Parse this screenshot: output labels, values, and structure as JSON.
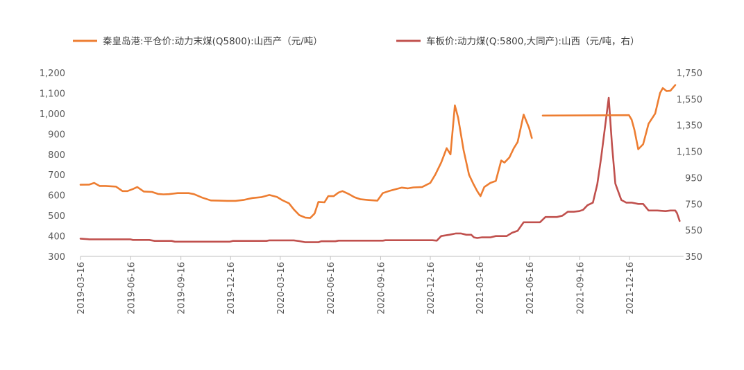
{
  "chart_data": {
    "type": "line",
    "legend_position": "top",
    "grid": false,
    "series": [
      {
        "name": "秦皇岛港:平仓价:动力末煤(Q5800):山西产（元/吨）",
        "axis": "left",
        "color": "#ED7D31",
        "points": [
          [
            "2019-03-16",
            651
          ],
          [
            "2019-04-01",
            652
          ],
          [
            "2019-04-10",
            660
          ],
          [
            "2019-04-20",
            645
          ],
          [
            "2019-05-01",
            645
          ],
          [
            "2019-05-20",
            642
          ],
          [
            "2019-06-01",
            620
          ],
          [
            "2019-06-10",
            620
          ],
          [
            "2019-06-20",
            630
          ],
          [
            "2019-06-28",
            640
          ],
          [
            "2019-07-10",
            618
          ],
          [
            "2019-07-25",
            616
          ],
          [
            "2019-08-05",
            606
          ],
          [
            "2019-08-15",
            604
          ],
          [
            "2019-08-25",
            605
          ],
          [
            "2019-09-10",
            610
          ],
          [
            "2019-09-30",
            610
          ],
          [
            "2019-10-10",
            605
          ],
          [
            "2019-10-25",
            588
          ],
          [
            "2019-11-10",
            574
          ],
          [
            "2019-11-25",
            573
          ],
          [
            "2019-12-10",
            572
          ],
          [
            "2019-12-25",
            572
          ],
          [
            "2020-01-10",
            577
          ],
          [
            "2020-01-25",
            586
          ],
          [
            "2020-02-10",
            590
          ],
          [
            "2020-02-25",
            601
          ],
          [
            "2020-03-10",
            591
          ],
          [
            "2020-03-20",
            575
          ],
          [
            "2020-04-01",
            560
          ],
          [
            "2020-04-10",
            530
          ],
          [
            "2020-04-20",
            502
          ],
          [
            "2020-05-01",
            490
          ],
          [
            "2020-05-10",
            488
          ],
          [
            "2020-05-18",
            510
          ],
          [
            "2020-05-25",
            567
          ],
          [
            "2020-06-05",
            565
          ],
          [
            "2020-06-12",
            595
          ],
          [
            "2020-06-22",
            595
          ],
          [
            "2020-07-01",
            613
          ],
          [
            "2020-07-08",
            620
          ],
          [
            "2020-07-20",
            605
          ],
          [
            "2020-07-30",
            590
          ],
          [
            "2020-08-10",
            580
          ],
          [
            "2020-08-25",
            576
          ],
          [
            "2020-09-10",
            573
          ],
          [
            "2020-09-20",
            610
          ],
          [
            "2020-10-01",
            620
          ],
          [
            "2020-10-15",
            630
          ],
          [
            "2020-10-25",
            637
          ],
          [
            "2020-11-05",
            633
          ],
          [
            "2020-11-15",
            638
          ],
          [
            "2020-12-01",
            640
          ],
          [
            "2020-12-16",
            660
          ],
          [
            "2020-12-25",
            700
          ],
          [
            "2021-01-05",
            760
          ],
          [
            "2021-01-15",
            830
          ],
          [
            "2021-01-22",
            800
          ],
          [
            "2021-01-30",
            1040
          ],
          [
            "2021-02-05",
            980
          ],
          [
            "2021-02-15",
            820
          ],
          [
            "2021-02-25",
            700
          ],
          [
            "2021-03-05",
            655
          ],
          [
            "2021-03-12",
            620
          ],
          [
            "2021-03-18",
            595
          ],
          [
            "2021-03-25",
            640
          ],
          [
            "2021-04-05",
            660
          ],
          [
            "2021-04-15",
            670
          ],
          [
            "2021-04-25",
            770
          ],
          [
            "2021-05-01",
            760
          ],
          [
            "2021-05-10",
            785
          ],
          [
            "2021-05-18",
            830
          ],
          [
            "2021-05-25",
            860
          ],
          [
            "2021-06-05",
            995
          ],
          [
            "2021-06-15",
            930
          ],
          [
            "2021-06-20",
            880
          ]
        ]
      },
      {
        "name": "车板价:动力煤(Q:5800,大同产):山西（元/吨，右）",
        "axis": "right",
        "color": "#C0504D",
        "points": [
          [
            "2019-03-16",
            485
          ],
          [
            "2019-04-01",
            480
          ],
          [
            "2019-06-15",
            480
          ],
          [
            "2019-06-20",
            475
          ],
          [
            "2019-07-20",
            475
          ],
          [
            "2019-07-30",
            468
          ],
          [
            "2019-08-30",
            468
          ],
          [
            "2019-09-05",
            462
          ],
          [
            "2019-12-15",
            462
          ],
          [
            "2019-12-20",
            468
          ],
          [
            "2020-02-20",
            468
          ],
          [
            "2020-02-25",
            472
          ],
          [
            "2020-04-10",
            472
          ],
          [
            "2020-04-20",
            466
          ],
          [
            "2020-05-01",
            458
          ],
          [
            "2020-05-25",
            458
          ],
          [
            "2020-05-30",
            465
          ],
          [
            "2020-06-25",
            465
          ],
          [
            "2020-07-01",
            470
          ],
          [
            "2020-09-20",
            470
          ],
          [
            "2020-09-25",
            473
          ],
          [
            "2020-12-20",
            473
          ],
          [
            "2020-12-28",
            470
          ],
          [
            "2021-01-05",
            505
          ],
          [
            "2021-01-20",
            515
          ],
          [
            "2021-02-01",
            525
          ],
          [
            "2021-02-10",
            525
          ],
          [
            "2021-02-20",
            515
          ],
          [
            "2021-03-01",
            515
          ],
          [
            "2021-03-06",
            495
          ],
          [
            "2021-03-12",
            490
          ],
          [
            "2021-03-20",
            495
          ],
          [
            "2021-04-05",
            495
          ],
          [
            "2021-04-15",
            505
          ],
          [
            "2021-05-05",
            505
          ],
          [
            "2021-05-15",
            530
          ],
          [
            "2021-05-25",
            545
          ],
          [
            "2021-06-05",
            610
          ],
          [
            "2021-06-20",
            610
          ],
          [
            "2021-07-05",
            610
          ],
          [
            "2021-07-15",
            650
          ],
          [
            "2021-08-05",
            650
          ],
          [
            "2021-08-15",
            660
          ],
          [
            "2021-08-25",
            690
          ],
          [
            "2021-09-05",
            690
          ],
          [
            "2021-09-15",
            695
          ],
          [
            "2021-09-22",
            705
          ],
          [
            "2021-09-30",
            740
          ],
          [
            "2021-10-10",
            760
          ],
          [
            "2021-10-18",
            900
          ],
          [
            "2021-10-25",
            1100
          ],
          [
            "2021-11-01",
            1330
          ],
          [
            "2021-11-08",
            1560
          ],
          [
            "2021-11-14",
            1200
          ],
          [
            "2021-11-20",
            905
          ],
          [
            "2021-12-01",
            780
          ],
          [
            "2021-12-10",
            760
          ],
          [
            "2021-12-20",
            760
          ],
          [
            "2022-01-01",
            750
          ],
          [
            "2022-01-10",
            750
          ],
          [
            "2022-01-20",
            700
          ],
          [
            "2022-02-05",
            700
          ],
          [
            "2022-02-20",
            695
          ],
          [
            "2022-03-01",
            700
          ],
          [
            "2022-03-10",
            700
          ],
          [
            "2022-03-13",
            680
          ],
          [
            "2022-03-18",
            620
          ]
        ]
      },
      {
        "name": "秦皇岛港:平仓价:动力末煤(Q5800):山西产（元/吨）",
        "segment_of": 0,
        "axis": "left",
        "color": "#ED7D31",
        "points": [
          [
            "2021-07-10",
            990
          ],
          [
            "2021-12-15",
            992
          ],
          [
            "2021-12-20",
            970
          ],
          [
            "2021-12-25",
            920
          ],
          [
            "2022-01-01",
            825
          ],
          [
            "2022-01-10",
            850
          ],
          [
            "2022-01-20",
            950
          ],
          [
            "2022-02-01",
            1000
          ],
          [
            "2022-02-10",
            1100
          ],
          [
            "2022-02-15",
            1125
          ],
          [
            "2022-02-22",
            1110
          ],
          [
            "2022-03-01",
            1112
          ],
          [
            "2022-03-10",
            1140
          ]
        ]
      }
    ],
    "x_range": [
      "2019-03-16",
      "2022-03-20"
    ],
    "x_tick_labels": [
      "2019-03-16",
      "2019-06-16",
      "2019-09-16",
      "2019-12-16",
      "2020-03-16",
      "2020-06-16",
      "2020-09-16",
      "2020-12-16",
      "2021-03-16",
      "2021-06-16",
      "2021-09-16",
      "2021-12-16"
    ],
    "y_left": {
      "range": [
        300,
        1200
      ],
      "ticks": [
        "1,200",
        "1,100",
        "1,000",
        "900",
        "800",
        "700",
        "600",
        "500",
        "400",
        "300"
      ]
    },
    "y_right": {
      "range": [
        350,
        1750
      ],
      "ticks": [
        "1,750",
        "1,550",
        "1,350",
        "1,150",
        "950",
        "750",
        "550",
        "350"
      ]
    }
  }
}
